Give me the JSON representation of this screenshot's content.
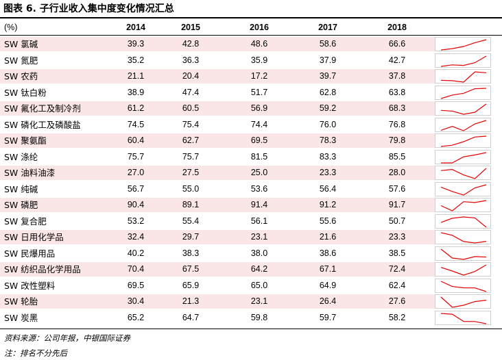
{
  "title": "图表 6. 子行业收入集中度变化情况汇总",
  "header": {
    "unit": "(%)",
    "years": [
      "2014",
      "2015",
      "2016",
      "2017",
      "2018"
    ]
  },
  "rows": [
    {
      "name": "SW 氯碱",
      "values": [
        "39.3",
        "42.8",
        "48.6",
        "58.6",
        "66.6"
      ]
    },
    {
      "name": "SW 氮肥",
      "values": [
        "35.2",
        "36.3",
        "35.9",
        "37.9",
        "42.7"
      ]
    },
    {
      "name": "SW 农药",
      "values": [
        "21.1",
        "20.4",
        "17.2",
        "39.7",
        "37.8"
      ]
    },
    {
      "name": "SW 钛白粉",
      "values": [
        "38.9",
        "47.4",
        "51.7",
        "62.8",
        "63.8"
      ]
    },
    {
      "name": "SW 氟化工及制冷剂",
      "values": [
        "61.2",
        "60.5",
        "56.9",
        "59.2",
        "68.3"
      ]
    },
    {
      "name": "SW 磷化工及磷酸盐",
      "values": [
        "74.5",
        "75.4",
        "74.4",
        "76.0",
        "76.8"
      ]
    },
    {
      "name": "SW 聚氨酯",
      "values": [
        "60.4",
        "62.7",
        "69.5",
        "78.3",
        "79.8"
      ]
    },
    {
      "name": "SW 涤纶",
      "values": [
        "75.7",
        "75.7",
        "81.5",
        "83.3",
        "85.5"
      ]
    },
    {
      "name": "SW 油料油漆",
      "values": [
        "27.0",
        "27.5",
        "25.0",
        "23.3",
        "28.0"
      ]
    },
    {
      "name": "SW 纯碱",
      "values": [
        "56.7",
        "55.0",
        "53.6",
        "56.4",
        "57.6"
      ]
    },
    {
      "name": "SW 磷肥",
      "values": [
        "90.4",
        "89.1",
        "91.4",
        "91.2",
        "91.7"
      ]
    },
    {
      "name": "SW 复合肥",
      "values": [
        "53.2",
        "55.4",
        "56.1",
        "55.6",
        "50.7"
      ]
    },
    {
      "name": "SW 日用化学品",
      "values": [
        "32.4",
        "29.7",
        "23.1",
        "21.6",
        "23.3"
      ]
    },
    {
      "name": "SW 民爆用品",
      "values": [
        "40.2",
        "38.3",
        "38.0",
        "38.6",
        "38.5"
      ]
    },
    {
      "name": "SW 纺织品化学用品",
      "values": [
        "70.4",
        "67.5",
        "64.2",
        "67.1",
        "72.4"
      ]
    },
    {
      "name": "SW 改性塑料",
      "values": [
        "69.5",
        "65.9",
        "65.0",
        "64.9",
        "62.4"
      ]
    },
    {
      "name": "SW 轮胎",
      "values": [
        "30.4",
        "21.3",
        "23.1",
        "26.4",
        "27.6"
      ]
    },
    {
      "name": "SW 炭黑",
      "values": [
        "65.2",
        "64.7",
        "59.8",
        "59.7",
        "58.2"
      ]
    }
  ],
  "sparkline_color": "#e60000",
  "notes": {
    "source": "资料来源：公司年报，中银国际证券",
    "remark": "注：排名不分先后"
  }
}
